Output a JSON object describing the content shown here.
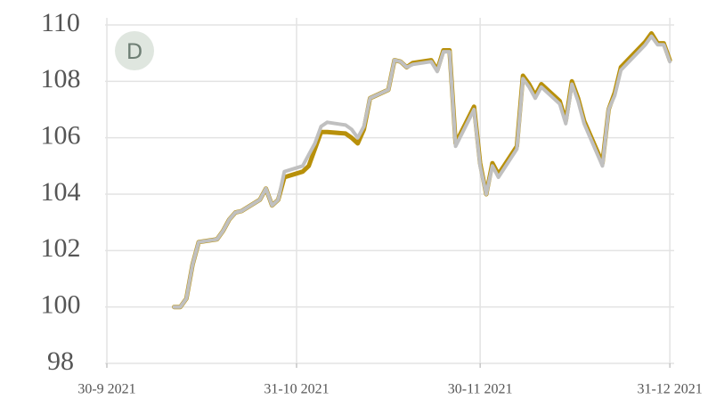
{
  "chart_data": {
    "type": "line",
    "badge": "D",
    "x": [
      "2021-10-11",
      "2021-10-12",
      "2021-10-13",
      "2021-10-14",
      "2021-10-15",
      "2021-10-18",
      "2021-10-19",
      "2021-10-20",
      "2021-10-21",
      "2021-10-22",
      "2021-10-25",
      "2021-10-26",
      "2021-10-27",
      "2021-10-28",
      "2021-10-29",
      "2021-11-01",
      "2021-11-02",
      "2021-11-03",
      "2021-11-04",
      "2021-11-05",
      "2021-11-08",
      "2021-11-09",
      "2021-11-10",
      "2021-11-11",
      "2021-11-12",
      "2021-11-15",
      "2021-11-16",
      "2021-11-17",
      "2021-11-18",
      "2021-11-19",
      "2021-11-22",
      "2021-11-23",
      "2021-11-24",
      "2021-11-25",
      "2021-11-26",
      "2021-11-29",
      "2021-11-30",
      "2021-12-01",
      "2021-12-02",
      "2021-12-03",
      "2021-12-06",
      "2021-12-07",
      "2021-12-08",
      "2021-12-09",
      "2021-12-10",
      "2021-12-13",
      "2021-12-14",
      "2021-12-15",
      "2021-12-16",
      "2021-12-17",
      "2021-12-20",
      "2021-12-21",
      "2021-12-22",
      "2021-12-23",
      "2021-12-27",
      "2021-12-28",
      "2021-12-29",
      "2021-12-30",
      "2021-12-31"
    ],
    "series": [
      {
        "color": "#b8900a",
        "values": [
          100.0,
          100.0,
          100.3,
          101.5,
          102.3,
          102.4,
          102.7,
          103.1,
          103.35,
          103.4,
          103.8,
          104.2,
          103.6,
          103.8,
          104.6,
          104.8,
          105.0,
          105.6,
          106.2,
          106.2,
          106.15,
          106.0,
          105.8,
          106.3,
          107.4,
          107.7,
          108.75,
          108.7,
          108.5,
          108.65,
          108.75,
          108.4,
          109.1,
          109.1,
          105.8,
          107.1,
          105.1,
          104.0,
          105.1,
          104.7,
          105.7,
          108.2,
          107.9,
          107.5,
          107.9,
          107.3,
          106.6,
          108.0,
          107.4,
          106.6,
          105.1,
          107.0,
          107.6,
          108.5,
          109.4,
          109.7,
          109.35,
          109.35,
          108.75
        ]
      },
      {
        "color": "#c0c0c0",
        "values": [
          100.0,
          100.0,
          100.3,
          101.5,
          102.3,
          102.4,
          102.7,
          103.1,
          103.35,
          103.4,
          103.8,
          104.2,
          103.6,
          103.8,
          104.8,
          105.0,
          105.4,
          105.8,
          106.4,
          106.55,
          106.45,
          106.3,
          106.0,
          106.4,
          107.4,
          107.7,
          108.75,
          108.7,
          108.5,
          108.6,
          108.7,
          108.35,
          109.05,
          109.05,
          105.7,
          107.0,
          105.0,
          104.0,
          105.0,
          104.6,
          105.6,
          108.1,
          107.8,
          107.4,
          107.8,
          107.2,
          106.5,
          107.9,
          107.3,
          106.5,
          105.0,
          107.0,
          107.5,
          108.4,
          109.3,
          109.6,
          109.3,
          109.3,
          108.7
        ]
      }
    ],
    "xlim": [
      "2021-09-30",
      "2022-01-01"
    ],
    "xticks": [
      {
        "value": "2021-09-30",
        "label": "30-9 2021"
      },
      {
        "value": "2021-10-31",
        "label": "31-10 2021"
      },
      {
        "value": "2021-11-30",
        "label": "30-11 2021"
      },
      {
        "value": "2021-12-31",
        "label": "31-12 2021"
      }
    ],
    "ylim": [
      98,
      110
    ],
    "yticks": [
      98,
      100,
      102,
      104,
      106,
      108,
      110
    ],
    "grid": true
  }
}
